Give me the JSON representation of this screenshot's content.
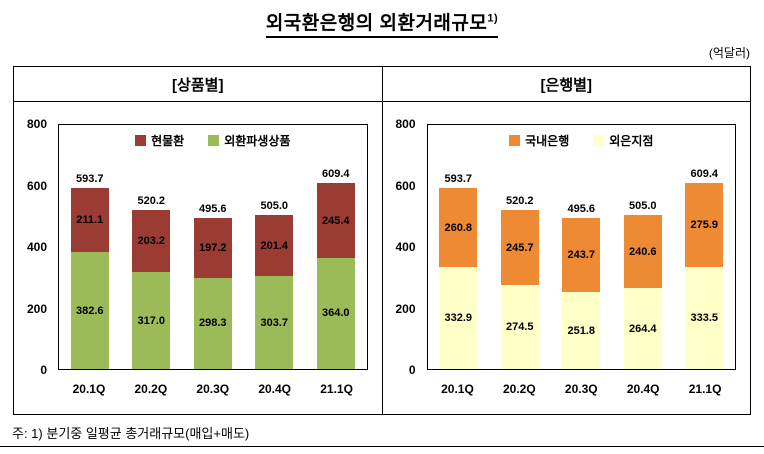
{
  "title": {
    "text": "외국환은행의 외환거래규모",
    "sup": "1)"
  },
  "unit_label": "(억달러)",
  "note": "주: 1) 분기중 일평균 총거래규모(매입+매도)",
  "panels": [
    {
      "title": "[상품별]"
    },
    {
      "title": "[은행별]"
    }
  ],
  "chart_data": [
    {
      "type": "bar",
      "stacked": true,
      "title": "[상품별]",
      "categories": [
        "20.1Q",
        "20.2Q",
        "20.3Q",
        "20.4Q",
        "21.1Q"
      ],
      "series": [
        {
          "name": "현물환",
          "color": "#9A3C34",
          "stack": "top",
          "values": [
            211.1,
            203.2,
            197.2,
            201.4,
            245.4
          ]
        },
        {
          "name": "외환파생상품",
          "color": "#9BBB59",
          "stack": "bottom",
          "values": [
            382.6,
            317.0,
            298.3,
            303.7,
            364.0
          ]
        }
      ],
      "totals": [
        593.7,
        520.2,
        495.6,
        505.0,
        609.4
      ],
      "ylim": [
        0,
        800
      ],
      "yticks": [
        0,
        200,
        400,
        600,
        800
      ],
      "legend_position": "top-center-inside",
      "grid": false
    },
    {
      "type": "bar",
      "stacked": true,
      "title": "[은행별]",
      "categories": [
        "20.1Q",
        "20.2Q",
        "20.3Q",
        "20.4Q",
        "21.1Q"
      ],
      "series": [
        {
          "name": "국내은행",
          "color": "#ED8A33",
          "stack": "top",
          "values": [
            260.8,
            245.7,
            243.7,
            240.6,
            275.9
          ]
        },
        {
          "name": "외은지점",
          "color": "#FFFFC8",
          "stack": "bottom",
          "values": [
            332.9,
            274.5,
            251.8,
            264.4,
            333.5
          ]
        }
      ],
      "totals": [
        593.7,
        520.2,
        495.6,
        505.0,
        609.4
      ],
      "ylim": [
        0,
        800
      ],
      "yticks": [
        0,
        200,
        400,
        600,
        800
      ],
      "legend_position": "top-center-inside",
      "grid": false
    }
  ]
}
